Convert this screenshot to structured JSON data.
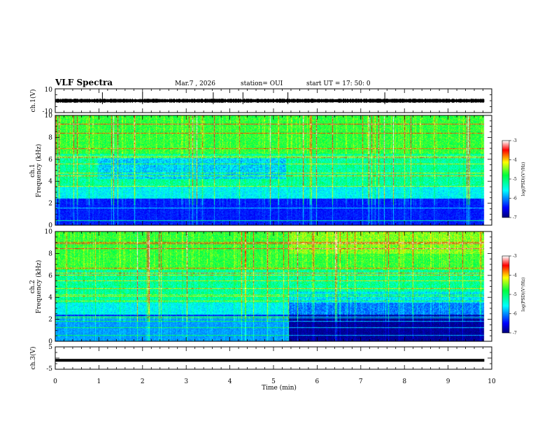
{
  "header": {
    "title": "VLF Spectra",
    "date": "Mar.7  , 2026",
    "station": "station= OUI",
    "start_ut": "start  UT  =    17: 50: 0"
  },
  "colors": {
    "background": "#ffffff",
    "spectrogram_low": "#00007f",
    "spectrogram_mid": "#00ff80",
    "spectrogram_high": "#ff0000",
    "saturated": "#ffffff"
  },
  "colormap_stops": [
    [
      0.0,
      "#00007f"
    ],
    [
      0.12,
      "#0000ff"
    ],
    [
      0.35,
      "#00ffff"
    ],
    [
      0.55,
      "#00ff40"
    ],
    [
      0.72,
      "#ffff00"
    ],
    [
      0.88,
      "#ff0000"
    ],
    [
      1.0,
      "#ffffff"
    ]
  ],
  "chart_data": [
    {
      "type": "line",
      "id": "ch1_waveform",
      "ylabel": "ch.1(V)",
      "ylim": [
        -10,
        10
      ],
      "yticks": [
        10,
        -10
      ],
      "ytick_labels": [
        "10",
        "-10"
      ],
      "xlim": [
        0,
        10
      ],
      "baseline": 0,
      "note_values": [
        0
      ]
    },
    {
      "type": "heatmap",
      "id": "ch1_spectrogram",
      "ylabel_1": "ch.1",
      "ylabel_2": "Frequency  (kHz)",
      "ylim": [
        0,
        10
      ],
      "yticks": [
        0,
        2,
        4,
        6,
        8,
        10
      ],
      "ytick_labels": [
        "0",
        "2",
        "4",
        "6",
        "8",
        "10"
      ],
      "xlim": [
        0,
        10
      ],
      "data_end_min": 9.83,
      "colorbar": {
        "label": "log(PSD)(V²/Hz)",
        "range": [
          -7,
          -3
        ],
        "ticks": [
          -3,
          -4,
          -5,
          -6,
          -7
        ],
        "tick_labels": [
          "-3",
          "-4",
          "-5",
          "-6",
          "-7"
        ]
      }
    },
    {
      "type": "heatmap",
      "id": "ch2_spectrogram",
      "ylabel_1": "ch.2",
      "ylabel_2": "Frequency  (kHz)",
      "ylim": [
        0,
        10
      ],
      "yticks": [
        0,
        2,
        4,
        6,
        8,
        10
      ],
      "ytick_labels": [
        "0",
        "2",
        "4",
        "6",
        "8",
        "10"
      ],
      "xlim": [
        0,
        10
      ],
      "data_end_min": 9.83,
      "regime_change_min": 5.35,
      "colorbar": {
        "label": "log(PSD)(V²/Hz)",
        "range": [
          -7,
          -3
        ],
        "ticks": [
          -3,
          -4,
          -5,
          -6,
          -7
        ],
        "tick_labels": [
          "-3",
          "-4",
          "-5",
          "-6",
          "-7"
        ]
      }
    },
    {
      "type": "line",
      "id": "ch3_waveform",
      "ylabel": "ch.3(V)",
      "ylim": [
        -5,
        5
      ],
      "yticks": [
        5,
        0,
        -5
      ],
      "ytick_labels": [
        "5",
        "0",
        "-5"
      ],
      "xlim": [
        0,
        10
      ],
      "baseline": -1
    }
  ],
  "xaxis": {
    "label": "Time  (min)",
    "ticks": [
      0,
      1,
      2,
      3,
      4,
      5,
      6,
      7,
      8,
      9,
      10
    ],
    "tick_labels": [
      "0",
      "1",
      "2",
      "3",
      "4",
      "5",
      "6",
      "7",
      "8",
      "9",
      "10"
    ]
  }
}
